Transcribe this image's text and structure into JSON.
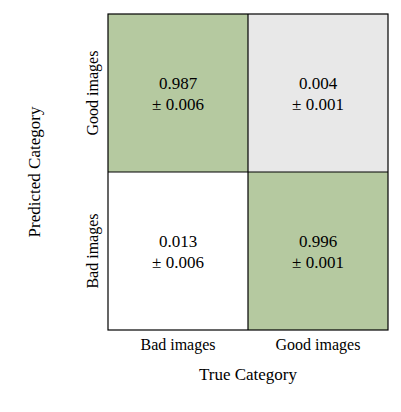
{
  "chart_data": {
    "type": "heatmap",
    "x_label": "True Category",
    "y_label": "Predicted Category",
    "categories": [
      "Bad images",
      "Good images"
    ],
    "y_categories": [
      "Good images",
      "Bad images"
    ],
    "values": [
      [
        0.987,
        0.004
      ],
      [
        0.013,
        0.996
      ]
    ],
    "errors": [
      [
        0.006,
        0.001
      ],
      [
        0.006,
        0.001
      ]
    ],
    "value_labels": [
      [
        "0.987\n± 0.006",
        "0.004\n± 0.001"
      ],
      [
        "0.013\n± 0.006",
        "0.996\n± 0.001"
      ]
    ],
    "colors": [
      [
        "#b5c9a0",
        "#e8e8e8"
      ],
      [
        "#ffffff",
        "#b5c9a0"
      ]
    ],
    "data_labels": true
  }
}
